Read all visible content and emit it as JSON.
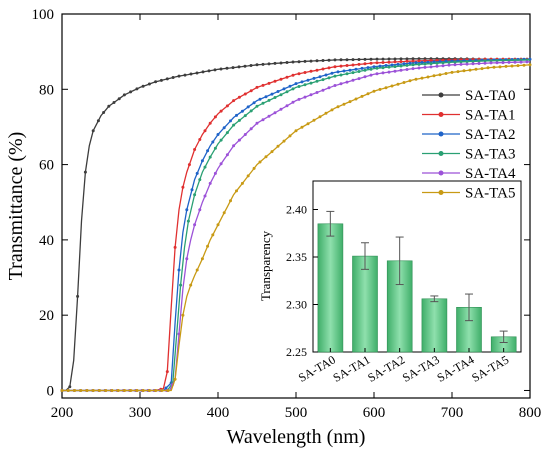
{
  "chart_data": [
    {
      "type": "line",
      "xlabel": "Wavelength (nm)",
      "ylabel": "Transmittance (%)",
      "xlim": [
        200,
        800
      ],
      "ylim": [
        -2,
        100
      ],
      "xticks": [
        "200",
        "300",
        "400",
        "500",
        "600",
        "700",
        "800"
      ],
      "yticks": [
        "0",
        "20",
        "40",
        "60",
        "80",
        "100"
      ],
      "legend_position": "right",
      "series": [
        {
          "name": "SA-TA0",
          "color": "#3d3d3d",
          "x": [
            200,
            205,
            210,
            215,
            220,
            225,
            230,
            235,
            240,
            250,
            260,
            270,
            280,
            300,
            320,
            350,
            400,
            450,
            500,
            550,
            600,
            650,
            700,
            750,
            800
          ],
          "y": [
            0,
            0,
            1,
            8,
            25,
            45,
            58,
            65,
            69,
            73,
            75.5,
            77,
            78.5,
            80.5,
            82,
            83.5,
            85.3,
            86.5,
            87.3,
            87.8,
            88,
            88.1,
            88.1,
            88,
            88
          ]
        },
        {
          "name": "SA-TA1",
          "color": "#e03030",
          "x": [
            200,
            320,
            330,
            335,
            340,
            345,
            350,
            355,
            360,
            370,
            380,
            390,
            400,
            420,
            450,
            500,
            550,
            600,
            650,
            700,
            750,
            800
          ],
          "y": [
            0,
            0,
            0.5,
            5,
            22,
            38,
            48,
            54,
            58,
            64,
            68,
            71,
            73.5,
            77,
            80.5,
            84,
            86,
            87,
            87.5,
            87.8,
            88,
            88
          ]
        },
        {
          "name": "SA-TA2",
          "color": "#1f63c8",
          "x": [
            200,
            330,
            340,
            345,
            350,
            355,
            360,
            370,
            380,
            390,
            400,
            420,
            450,
            500,
            550,
            600,
            650,
            700,
            750,
            800
          ],
          "y": [
            0,
            0,
            2,
            18,
            32,
            42,
            48,
            56,
            61,
            65,
            68,
            72.5,
            77,
            81.5,
            84.5,
            86,
            87,
            87.5,
            87.8,
            88
          ]
        },
        {
          "name": "SA-TA3",
          "color": "#2aa073",
          "x": [
            200,
            335,
            342,
            347,
            352,
            357,
            362,
            370,
            380,
            390,
            400,
            420,
            450,
            500,
            550,
            600,
            650,
            700,
            750,
            800
          ],
          "y": [
            0,
            0,
            2,
            15,
            28,
            38,
            45,
            52,
            58,
            62,
            65.5,
            70.5,
            75.5,
            80.5,
            83.5,
            85.5,
            86.5,
            87.2,
            87.6,
            87.8
          ]
        },
        {
          "name": "SA-TA4",
          "color": "#9c52d8",
          "x": [
            200,
            338,
            345,
            350,
            355,
            360,
            365,
            370,
            380,
            390,
            400,
            420,
            450,
            500,
            550,
            600,
            650,
            700,
            750,
            800
          ],
          "y": [
            0,
            0,
            3,
            15,
            27,
            35,
            40,
            44,
            50,
            55,
            59,
            65,
            71,
            77,
            81,
            84,
            85.5,
            86.5,
            87,
            87.3
          ]
        },
        {
          "name": "SA-TA5",
          "color": "#c89a14",
          "x": [
            200,
            340,
            345,
            350,
            355,
            360,
            365,
            370,
            380,
            390,
            400,
            420,
            450,
            500,
            550,
            600,
            650,
            700,
            750,
            800
          ],
          "y": [
            0,
            0,
            3,
            12,
            20,
            25,
            28,
            30.5,
            35,
            40,
            44,
            52,
            60,
            69,
            75,
            79.5,
            82.5,
            84.5,
            85.8,
            86.5
          ]
        }
      ]
    },
    {
      "type": "bar",
      "ylabel": "Transparency",
      "ylim": [
        2.25,
        2.43
      ],
      "yticks": [
        "2.25",
        "2.30",
        "2.35",
        "2.40"
      ],
      "categories": [
        "SA-TA0",
        "SA-TA1",
        "SA-TA2",
        "SA-TA3",
        "SA-TA4",
        "SA-TA5"
      ],
      "values": [
        2.385,
        2.351,
        2.346,
        2.306,
        2.297,
        2.266
      ],
      "errors": [
        0.013,
        0.014,
        0.025,
        0.003,
        0.014,
        0.006
      ],
      "bar_color": "#5cc984",
      "grid": false
    }
  ]
}
